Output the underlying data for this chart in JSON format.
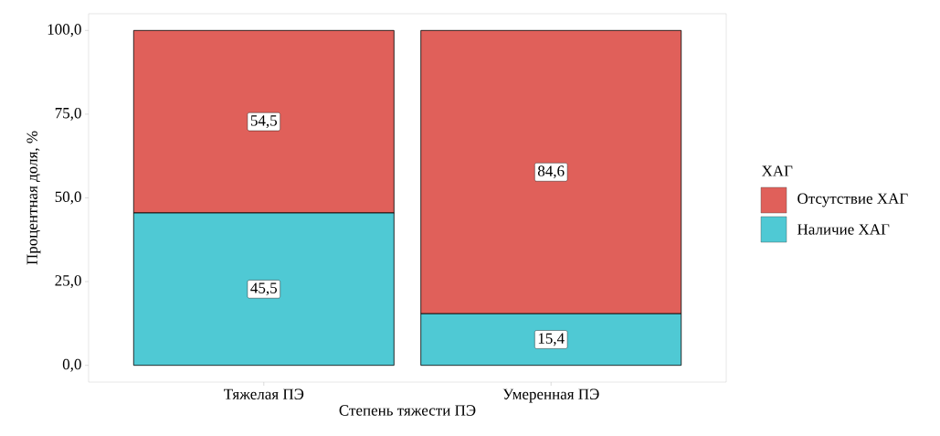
{
  "chart_data": {
    "type": "bar",
    "stacked": true,
    "xlabel": "Степень тяжести ПЭ",
    "ylabel": "Процентная доля, %",
    "legend_title": "ХАГ",
    "legend": "right",
    "categories": [
      "Тяжелая ПЭ",
      "Умеренная ПЭ"
    ],
    "series": [
      {
        "name": "Наличие ХАГ",
        "color": "#4fc9d4",
        "values": [
          45.5,
          15.4
        ],
        "value_labels": [
          "45,5",
          "15,4"
        ]
      },
      {
        "name": "Отсутствие ХАГ",
        "color": "#e0605a",
        "values": [
          54.5,
          84.6
        ],
        "value_labels": [
          "54,5",
          "84,6"
        ]
      }
    ],
    "ylim": [
      -5,
      105
    ],
    "yticks": [
      {
        "value": 0,
        "label": "0,0"
      },
      {
        "value": 25,
        "label": "25,0"
      },
      {
        "value": 50,
        "label": "50,0"
      },
      {
        "value": 75,
        "label": "75,0"
      },
      {
        "value": 100,
        "label": "100,0"
      }
    ]
  }
}
